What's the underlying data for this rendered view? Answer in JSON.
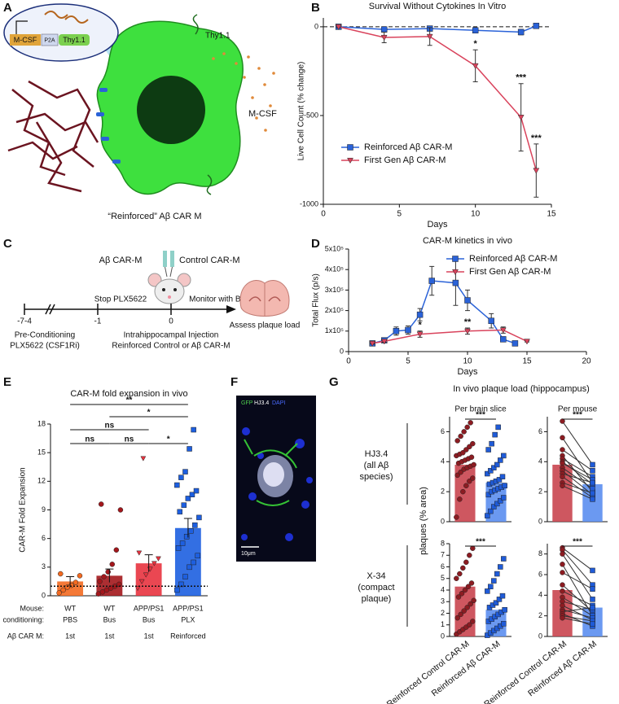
{
  "panel_a": {
    "label": "A",
    "construct": [
      "M-CSF",
      "P2A",
      "Thy1.1"
    ],
    "receptor_label": "Thy1.1",
    "ligand_label": "M-CSF",
    "caption": "“Reinforced” Aβ CAR M"
  },
  "panel_c": {
    "label": "C",
    "cells": [
      "Aβ CAR-M",
      "Control CAR-M"
    ],
    "timeline": [
      "-7-4",
      "-1",
      "0"
    ],
    "events_above": [
      "Stop PLX5622",
      "Monitor with BLI"
    ],
    "pre": [
      "Pre-Conditioning",
      "PLX5622 (CSF1Ri)"
    ],
    "injection": [
      "Intrahippocampal Injection",
      "Reinforced Control or Aβ CAR-M"
    ],
    "endpoint": "Assess plaque load"
  },
  "panel_f": {
    "label": "F",
    "stains": [
      "GFP",
      "HJ3.4",
      "DAPI"
    ],
    "scale_bar": "10μm"
  },
  "panel_g": {
    "label": "G",
    "title": "In vivo plaque load (hippocampus)",
    "ylabel": "plaques (% area)",
    "row_labels": [
      [
        "HJ3.4",
        "(all Aβ",
        "species)"
      ],
      [
        "X-34",
        "(compact",
        "plaque)"
      ]
    ]
  },
  "chart_data": [
    {
      "type": "line",
      "panel_label": "B",
      "title": "Survival Without Cytokines In Vitro",
      "xlabel": "Days",
      "ylabel": "Live Cell Count (% change)",
      "xlim": [
        0,
        15
      ],
      "xticks": [
        0,
        5,
        10,
        15
      ],
      "ylim": [
        -1000,
        50
      ],
      "yticks": [
        -1000,
        -500,
        0
      ],
      "reference_line": 0,
      "legend": "lower left",
      "series": [
        {
          "name": "Reinforced Aβ CAR-M",
          "color": "#2a62d8",
          "marker": "square",
          "x": [
            1,
            4,
            7,
            10,
            13,
            14
          ],
          "values": [
            0,
            -15,
            -10,
            -20,
            -30,
            5
          ],
          "errors": [
            5,
            10,
            10,
            15,
            15,
            10
          ]
        },
        {
          "name": "First Gen Aβ CAR-M",
          "color": "#d9435c",
          "marker": "triangle",
          "x": [
            1,
            4,
            7,
            10,
            13,
            14
          ],
          "values": [
            0,
            -60,
            -55,
            -220,
            -510,
            -810
          ],
          "errors": [
            5,
            30,
            50,
            90,
            190,
            150
          ]
        }
      ],
      "annotations": [
        "*",
        "***",
        "***"
      ]
    },
    {
      "type": "line",
      "panel_label": "D",
      "title": "CAR-M kinetics in vivo",
      "xlabel": "Days",
      "ylabel": "Total Flux (p/s)",
      "xlim": [
        0,
        20
      ],
      "xticks": [
        0,
        5,
        10,
        15,
        20
      ],
      "ylim": [
        0,
        500000
      ],
      "yticks": [
        0,
        {
          "value": 100000,
          "label": "1x10⁵"
        },
        {
          "value": 200000,
          "label": "2x10⁵"
        },
        {
          "value": 300000,
          "label": "3x10⁵"
        },
        {
          "value": 400000,
          "label": "4x10⁵"
        },
        {
          "value": 500000,
          "label": "5x10⁵"
        }
      ],
      "legend": "upper right",
      "series": [
        {
          "name": "Reinforced Aβ CAR-M",
          "color": "#2a62d8",
          "marker": "square",
          "x": [
            2,
            3,
            4,
            5,
            6,
            7,
            9,
            10,
            12,
            13,
            14
          ],
          "values": [
            40000,
            55000,
            100000,
            105000,
            180000,
            345000,
            335000,
            250000,
            150000,
            60000,
            40000
          ],
          "errors": [
            3000,
            8000,
            20000,
            20000,
            30000,
            70000,
            110000,
            50000,
            35000,
            10000,
            5000
          ]
        },
        {
          "name": "First Gen Aβ CAR-M",
          "color": "#d9435c",
          "marker": "triangle",
          "x": [
            2,
            3,
            6,
            10,
            13,
            15
          ],
          "values": [
            40000,
            50000,
            85000,
            100000,
            105000,
            50000
          ],
          "errors": [
            3000,
            5000,
            15000,
            15000,
            15000,
            3000
          ]
        }
      ],
      "annotations": [
        "*",
        "**"
      ]
    },
    {
      "type": "bar",
      "panel_label": "E",
      "title": "CAR-M fold expansion in vivo",
      "ylabel": "CAR-M Fold Expansion",
      "ylim": [
        0,
        18
      ],
      "yticks": [
        0,
        3,
        6,
        9,
        12,
        15,
        18
      ],
      "reference_line": 1,
      "row_labels": [
        "Mouse:",
        "conditioning:",
        "Aβ CAR M:"
      ],
      "category_rows": [
        [
          "WT",
          "WT",
          "APP/PS1",
          "APP/PS1"
        ],
        [
          "PBS",
          "Bus",
          "Bus",
          "PLX"
        ],
        [
          "1st",
          "1st",
          "1st",
          "Reinforced"
        ]
      ],
      "values": [
        1.5,
        2.1,
        3.4,
        7.1
      ],
      "errors": [
        0.5,
        0.7,
        0.9,
        1.0
      ],
      "colors": [
        "#f36a21",
        "#a3171c",
        "#e8333f",
        "#1d5fe0"
      ],
      "point_colors": [
        "#f36a21",
        "#a3171c",
        "#e8333f",
        "#1d5fe0"
      ],
      "markers": [
        "circle",
        "circle",
        "triangle",
        "square"
      ],
      "points": [
        [
          0.3,
          0.6,
          0.9,
          1.1,
          1.4,
          2.1,
          2.3
        ],
        [
          0.2,
          0.4,
          0.6,
          0.8,
          1.0,
          1.2,
          1.5,
          2.0,
          2.5,
          3.3,
          4.8,
          9.0,
          9.6
        ],
        [
          0.8,
          1.5,
          2.2,
          2.8,
          3.4,
          3.9,
          4.5,
          14.4
        ],
        [
          0.6,
          1.2,
          2.0,
          3.0,
          3.5,
          4.2,
          5.0,
          5.5,
          6.2,
          6.8,
          7.4,
          8.2,
          8.8,
          9.5,
          10.2,
          10.6,
          11.0,
          11.6,
          12.4,
          13.0,
          15.4,
          17.4
        ]
      ],
      "significance": [
        "ns",
        "ns",
        "*",
        "ns",
        "*",
        "**"
      ]
    },
    {
      "type": "bar",
      "subtitle": "Per brain slice",
      "ylim": [
        0,
        7
      ],
      "yticks": [
        0,
        2,
        4,
        6
      ],
      "values": [
        3.8,
        2.6
      ],
      "colors": [
        "#c9454f",
        "#5b8ef0"
      ],
      "point_colors": [
        "#8c1c22",
        "#1f5bd8"
      ],
      "markers": [
        "circle",
        "square"
      ],
      "points": [
        [
          0.3,
          1.5,
          2.0,
          2.4,
          2.7,
          2.9,
          3.1,
          3.3,
          3.5,
          3.6,
          3.7,
          3.8,
          3.9,
          4.0,
          4.1,
          4.2,
          4.3,
          4.4,
          4.5,
          4.6,
          4.8,
          5.0,
          5.2,
          5.4,
          5.7,
          6.0,
          6.3,
          6.6
        ],
        [
          0.4,
          0.7,
          1.0,
          1.2,
          1.4,
          1.6,
          1.8,
          2.0,
          2.1,
          2.2,
          2.3,
          2.4,
          2.5,
          2.6,
          2.7,
          2.8,
          3.0,
          3.2,
          3.4,
          3.6,
          3.8,
          4.1,
          4.4,
          4.8,
          5.2,
          5.8,
          6.3
        ]
      ],
      "significance": [
        "***"
      ]
    },
    {
      "type": "bar",
      "subtitle": "Per mouse",
      "paired": true,
      "ylim": [
        0,
        7
      ],
      "yticks": [
        0,
        2,
        4,
        6
      ],
      "values": [
        3.8,
        2.5
      ],
      "colors": [
        "#c9454f",
        "#5b8ef0"
      ],
      "point_colors": [
        "#8c1c22",
        "#1f5bd8"
      ],
      "markers": [
        "circle",
        "square"
      ],
      "points": [
        [
          6.7,
          5.6,
          4.8,
          4.4,
          4.2,
          4.0,
          3.9,
          3.6,
          3.4,
          3.2,
          3.0,
          2.6,
          2.4
        ],
        [
          3.8,
          2.6,
          3.4,
          2.0,
          3.0,
          2.5,
          2.8,
          2.2,
          1.8,
          2.6,
          1.6,
          1.9,
          1.5
        ]
      ],
      "significance": [
        "***"
      ]
    },
    {
      "type": "bar",
      "categories": [
        "Reinforced Control CAR-M",
        "Reinforced Aβ CAR-M"
      ],
      "ylim": [
        0,
        8
      ],
      "yticks": [
        0,
        1,
        2,
        3,
        4,
        5,
        6,
        7,
        8
      ],
      "values": [
        4.3,
        2.3
      ],
      "colors": [
        "#c9454f",
        "#5b8ef0"
      ],
      "point_colors": [
        "#8c1c22",
        "#1f5bd8"
      ],
      "markers": [
        "circle",
        "square"
      ],
      "points": [
        [
          0.2,
          0.4,
          0.6,
          0.8,
          1.0,
          1.3,
          1.6,
          1.9,
          2.2,
          2.5,
          2.8,
          3.1,
          3.4,
          3.7,
          4.0,
          4.3,
          4.6,
          5.0,
          5.4,
          5.9,
          6.4,
          7.0,
          7.6
        ],
        [
          0.1,
          0.3,
          0.5,
          0.7,
          0.9,
          1.1,
          1.3,
          1.5,
          1.7,
          1.9,
          2.1,
          2.3,
          2.5,
          2.7,
          2.9,
          3.2,
          3.5,
          3.9,
          4.3,
          4.8,
          5.4,
          6.0,
          6.7
        ]
      ],
      "significance": [
        "***"
      ]
    },
    {
      "type": "bar",
      "categories": [
        "Reinforced Control CAR-M",
        "Reinforced Aβ CAR-M"
      ],
      "paired": true,
      "ylim": [
        0,
        9
      ],
      "yticks": [
        0,
        2,
        4,
        6,
        8
      ],
      "values": [
        4.5,
        2.8
      ],
      "colors": [
        "#c9454f",
        "#5b8ef0"
      ],
      "point_colors": [
        "#8c1c22",
        "#1f5bd8"
      ],
      "markers": [
        "circle",
        "square"
      ],
      "points": [
        [
          8.6,
          8.4,
          8.0,
          7.0,
          6.2,
          5.0,
          4.4,
          3.8,
          3.4,
          3.0,
          2.6,
          2.4,
          2.2,
          2.0,
          1.8
        ],
        [
          6.4,
          5.0,
          3.6,
          2.0,
          4.6,
          2.4,
          3.0,
          2.0,
          2.6,
          1.6,
          1.8,
          2.8,
          1.0,
          1.5,
          1.2
        ]
      ],
      "significance": [
        "***"
      ]
    }
  ]
}
